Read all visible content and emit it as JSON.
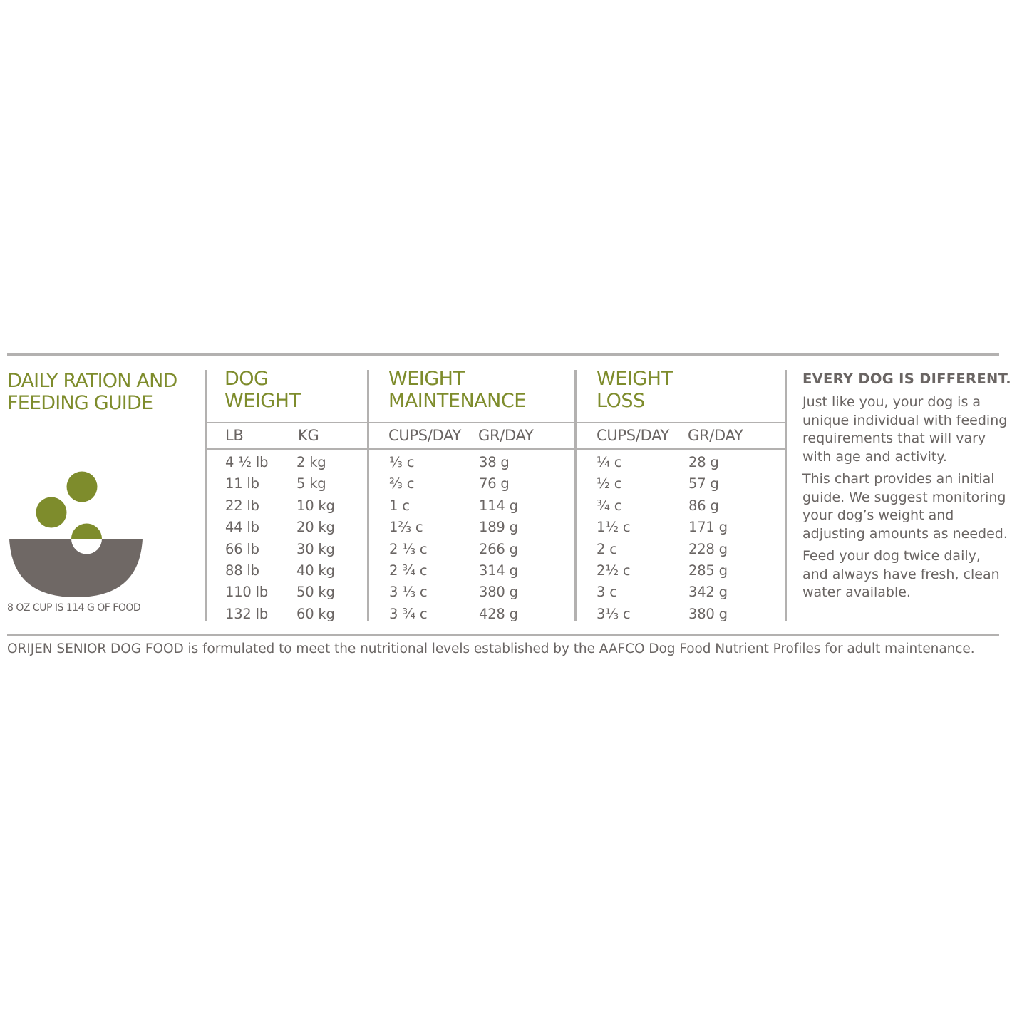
{
  "colors": {
    "accent": "#7e8c2c",
    "text": "#6a6563",
    "bowl": "#6f6865",
    "rule": "#b3b1b0"
  },
  "title": {
    "line1": "DAILY RATION AND",
    "line2": "FEEDING GUIDE"
  },
  "bowl_note": "8 OZ CUP IS 114 G OF FOOD",
  "table": {
    "groups": [
      {
        "line1": "DOG",
        "line2": "WEIGHT",
        "sub": [
          "LB",
          "KG"
        ]
      },
      {
        "line1": "WEIGHT",
        "line2": "MAINTENANCE",
        "sub": [
          "CUPS/DAY",
          "GR/DAY"
        ]
      },
      {
        "line1": "WEIGHT",
        "line2": "LOSS",
        "sub": [
          "CUPS/DAY",
          "GR/DAY"
        ]
      }
    ],
    "rows": [
      [
        "4 ½ lb",
        "2 kg",
        "⅓ c",
        "38 g",
        "¼ c",
        "28 g"
      ],
      [
        "11 lb",
        "5 kg",
        "⅔ c",
        "76 g",
        "½ c",
        "57 g"
      ],
      [
        "22 lb",
        "10 kg",
        "1 c",
        "114 g",
        "¾ c",
        "86 g"
      ],
      [
        "44 lb",
        "20 kg",
        "1⅔ c",
        "189 g",
        "1½ c",
        "171 g"
      ],
      [
        "66 lb",
        "30 kg",
        "2 ⅓ c",
        "266 g",
        "2 c",
        "228 g"
      ],
      [
        "88 lb",
        "40 kg",
        "2 ¾ c",
        "314 g",
        "2½ c",
        "285 g"
      ],
      [
        "110 lb",
        "50 kg",
        "3 ⅓ c",
        "380 g",
        "3 c",
        "342 g"
      ],
      [
        "132 lb",
        "60 kg",
        "3 ¾ c",
        "428 g",
        "3⅓ c",
        "380 g"
      ]
    ]
  },
  "side": {
    "heading": "EVERY DOG IS DIFFERENT.",
    "paragraphs": [
      "Just like you, your dog is a unique individual with feeding requirements that will vary with age and activity.",
      "This chart provides an initial guide. We suggest monitoring your dog’s weight and adjusting amounts as needed.",
      "Feed your dog twice daily, and always have fresh, clean water available."
    ]
  },
  "footer": "ORIJEN SENIOR DOG FOOD is formulated to meet the nutritional levels established by the AAFCO Dog Food Nutrient Profiles for adult maintenance."
}
